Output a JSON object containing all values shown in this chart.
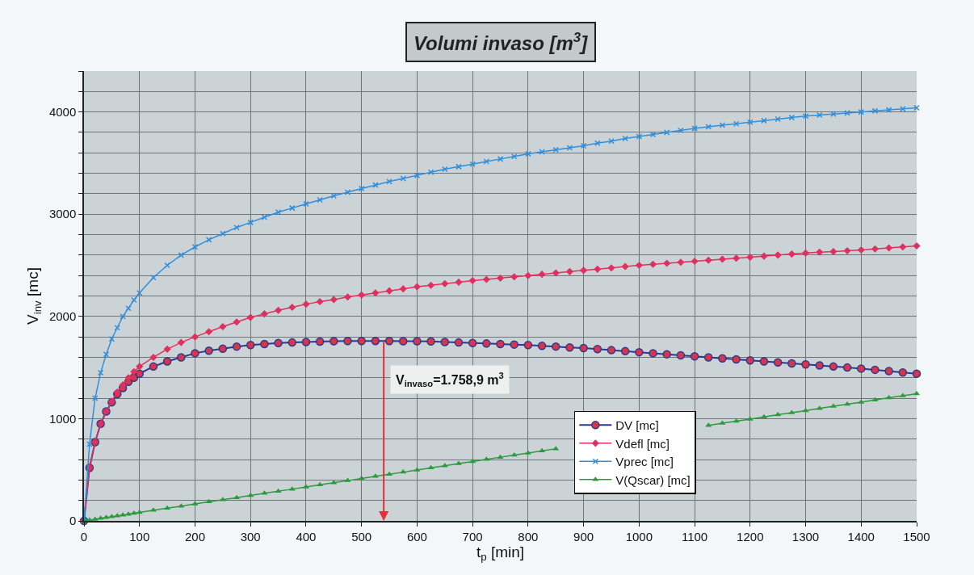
{
  "chart_data": {
    "type": "line",
    "title": "Volumi invaso [m$^{3}$]",
    "xlabel": "t$_{p}$ [min]",
    "ylabel": "V$_{inv}$ [mc]",
    "x": [
      0,
      10,
      20,
      30,
      40,
      50,
      60,
      70,
      80,
      90,
      100,
      125,
      150,
      175,
      200,
      225,
      250,
      275,
      300,
      325,
      350,
      375,
      400,
      425,
      450,
      475,
      500,
      525,
      550,
      575,
      600,
      625,
      650,
      675,
      700,
      725,
      750,
      775,
      800,
      825,
      850,
      875,
      900,
      925,
      950,
      975,
      1000,
      1025,
      1050,
      1075,
      1100,
      1125,
      1150,
      1175,
      1200,
      1225,
      1250,
      1275,
      1300,
      1325,
      1350,
      1375,
      1400,
      1425,
      1450,
      1475,
      1500
    ],
    "series": [
      {
        "name": "DV [mc]",
        "color": "#d8344c",
        "marker": "circle",
        "values": [
          0,
          520,
          770,
          950,
          1070,
          1160,
          1240,
          1300,
          1360,
          1400,
          1440,
          1510,
          1560,
          1600,
          1640,
          1665,
          1685,
          1705,
          1720,
          1730,
          1740,
          1745,
          1750,
          1754,
          1757,
          1759,
          1760,
          1760,
          1759,
          1758,
          1758,
          1755,
          1750,
          1745,
          1740,
          1735,
          1730,
          1725,
          1720,
          1712,
          1705,
          1697,
          1690,
          1680,
          1670,
          1660,
          1650,
          1640,
          1630,
          1620,
          1610,
          1600,
          1590,
          1580,
          1570,
          1560,
          1550,
          1540,
          1530,
          1520,
          1510,
          1500,
          1490,
          1478,
          1465,
          1452,
          1440
        ]
      },
      {
        "name": "Vdefl [mc]",
        "color": "#e0305e",
        "marker": "diamond",
        "values": [
          0,
          520,
          770,
          950,
          1070,
          1170,
          1260,
          1330,
          1400,
          1460,
          1510,
          1600,
          1680,
          1745,
          1800,
          1850,
          1900,
          1945,
          1990,
          2025,
          2060,
          2090,
          2120,
          2145,
          2165,
          2190,
          2210,
          2230,
          2250,
          2270,
          2290,
          2305,
          2320,
          2335,
          2350,
          2362,
          2375,
          2388,
          2400,
          2412,
          2425,
          2438,
          2450,
          2462,
          2475,
          2488,
          2500,
          2510,
          2520,
          2530,
          2540,
          2550,
          2560,
          2570,
          2580,
          2590,
          2600,
          2610,
          2620,
          2628,
          2635,
          2642,
          2650,
          2660,
          2670,
          2680,
          2690
        ]
      },
      {
        "name": "Vprec [mc]",
        "color": "#2f8fdc",
        "marker": "cross",
        "values": [
          0,
          750,
          1200,
          1450,
          1630,
          1780,
          1890,
          2000,
          2080,
          2160,
          2230,
          2380,
          2500,
          2600,
          2680,
          2750,
          2810,
          2870,
          2920,
          2970,
          3020,
          3060,
          3100,
          3140,
          3180,
          3215,
          3250,
          3285,
          3320,
          3350,
          3380,
          3410,
          3440,
          3465,
          3490,
          3515,
          3540,
          3565,
          3590,
          3610,
          3630,
          3650,
          3670,
          3695,
          3715,
          3740,
          3760,
          3780,
          3800,
          3820,
          3840,
          3855,
          3870,
          3885,
          3900,
          3915,
          3930,
          3945,
          3960,
          3970,
          3980,
          3990,
          4000,
          4010,
          4020,
          4030,
          4040
        ]
      },
      {
        "name": "V(Qscar) [mc]",
        "color": "#2e9a3e",
        "marker": "triangle",
        "values": [
          0,
          8,
          16,
          25,
          33,
          41,
          50,
          58,
          66,
          75,
          83,
          104,
          125,
          145,
          166,
          187,
          208,
          228,
          249,
          270,
          291,
          311,
          332,
          353,
          374,
          394,
          415,
          436,
          457,
          477,
          498,
          519,
          540,
          560,
          581,
          602,
          623,
          643,
          664,
          685,
          706,
          null,
          null,
          null,
          null,
          null,
          null,
          null,
          null,
          null,
          null,
          934,
          955,
          975,
          996,
          1017,
          1038,
          1058,
          1079,
          1100,
          1121,
          1141,
          1162,
          1183,
          1204,
          1224,
          1245
        ]
      }
    ],
    "annotations": [
      {
        "text": "V$_{invaso}$=1.758,9 m$^{3}$",
        "x": 540,
        "y": 1758.9
      }
    ],
    "xlim": [
      0,
      1500
    ],
    "xticks": [
      0,
      100,
      200,
      300,
      400,
      500,
      600,
      700,
      800,
      900,
      1000,
      1100,
      1200,
      1300,
      1400,
      1500
    ],
    "ylim": [
      0,
      4400
    ],
    "yticks": [
      0,
      {
        "value": 200,
        "label": null
      },
      {
        "value": 400,
        "label": null
      },
      {
        "value": 600,
        "label": null
      },
      {
        "value": 800,
        "label": null
      },
      1000,
      {
        "value": 1200,
        "label": null
      },
      {
        "value": 1400,
        "label": null
      },
      {
        "value": 1600,
        "label": null
      },
      {
        "value": 1800,
        "label": null
      },
      2000,
      {
        "value": 2200,
        "label": null
      },
      {
        "value": 2400,
        "label": null
      },
      {
        "value": 2600,
        "label": null
      },
      {
        "value": 2800,
        "label": null
      },
      3000,
      {
        "value": 3200,
        "label": null
      },
      {
        "value": 3400,
        "label": null
      },
      {
        "value": 3600,
        "label": null
      },
      {
        "value": 3800,
        "label": null
      },
      4000,
      {
        "value": 4200,
        "label": null
      },
      {
        "value": 4400,
        "label": null
      }
    ],
    "grid": true,
    "legend": "bottom right",
    "line_style": "solid"
  }
}
